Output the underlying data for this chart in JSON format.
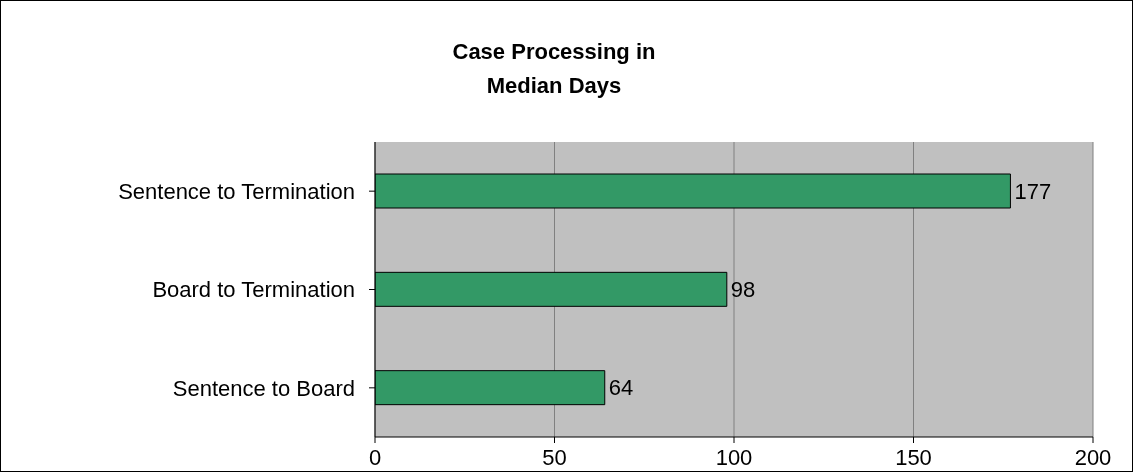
{
  "chart_data": {
    "type": "bar",
    "orientation": "horizontal",
    "title": "Case Processing in Median Days",
    "categories": [
      "Sentence to Termination",
      "Board to Termination",
      "Sentence to Board"
    ],
    "values": [
      177,
      98,
      64
    ],
    "color": "#339966",
    "xlim": [
      0,
      200
    ],
    "xticks": [
      0,
      50,
      100,
      150,
      200
    ],
    "grid": "x",
    "data_labels": true
  }
}
